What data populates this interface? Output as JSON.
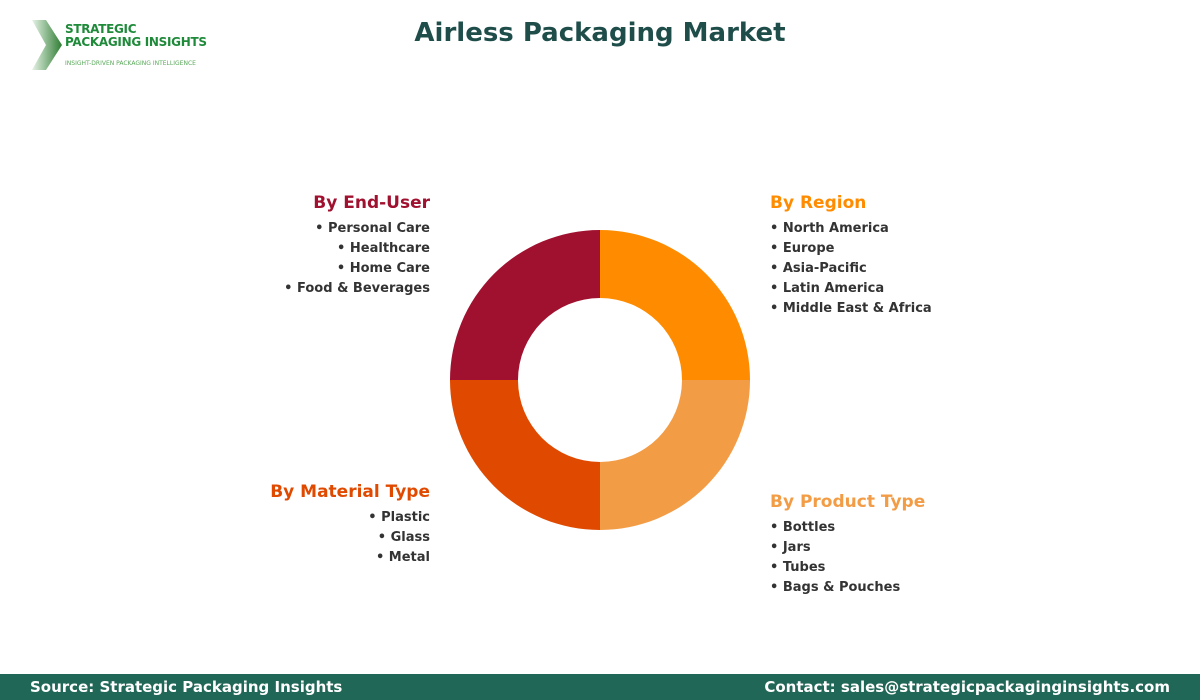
{
  "logo": {
    "line1": "STRATEGIC",
    "line2": "PACKAGING INSIGHTS",
    "tagline": "INSIGHT-DRIVEN PACKAGING INTELLIGENCE"
  },
  "title": "Airless Packaging Market",
  "segments": [
    {
      "heading": "By Region",
      "color": "#FF8C00",
      "items": [
        "North America",
        "Europe",
        "Asia-Pacific",
        "Latin America",
        "Middle East & Africa"
      ]
    },
    {
      "heading": "By Product Type",
      "color": "#F39C46",
      "items": [
        "Bottles",
        "Jars",
        "Tubes",
        "Bags & Pouches"
      ]
    },
    {
      "heading": "By Material Type",
      "color": "#E04A00",
      "items": [
        "Plastic",
        "Glass",
        "Metal"
      ]
    },
    {
      "heading": "By End-User",
      "color": "#A0102F",
      "items": [
        "Personal Care",
        "Healthcare",
        "Home Care",
        "Food & Beverages"
      ]
    }
  ],
  "footer": {
    "source": "Source: Strategic Packaging Insights",
    "contact": "Contact: sales@strategicpackaginginsights.com"
  }
}
